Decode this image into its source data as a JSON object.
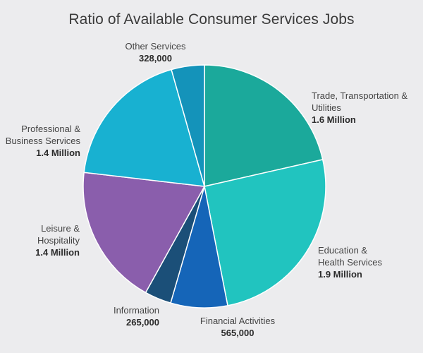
{
  "chart_data": {
    "type": "pie",
    "title": "Ratio of Available Consumer Services Jobs",
    "slices": [
      {
        "label": "Trade, Transportation & Utilities",
        "display_value": "1.6 Million",
        "value": 1600000,
        "color": "#1ba99b"
      },
      {
        "label": "Education & Health Services",
        "display_value": "1.9 Million",
        "value": 1900000,
        "color": "#21c4bf"
      },
      {
        "label": "Financial Activities",
        "display_value": "565,000",
        "value": 565000,
        "color": "#1565b8"
      },
      {
        "label": "Information",
        "display_value": "265,000",
        "value": 265000,
        "color": "#1b4f78"
      },
      {
        "label": "Leisure & Hospitality",
        "display_value": "1.4 Million",
        "value": 1400000,
        "color": "#8a5eac"
      },
      {
        "label": "Professional & Business Services",
        "display_value": "1.4 Million",
        "value": 1400000,
        "color": "#18b1d1"
      },
      {
        "label": "Other Services",
        "display_value": "328,000",
        "value": 328000,
        "color": "#1493ba"
      }
    ]
  }
}
